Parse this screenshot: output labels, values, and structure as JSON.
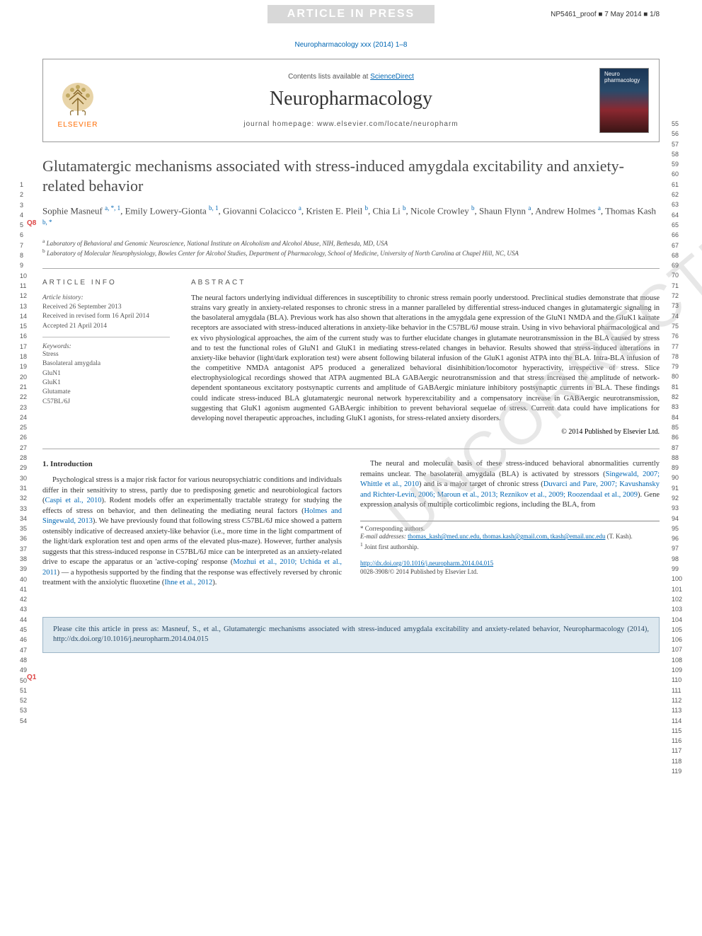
{
  "banner": {
    "label": "ARTICLE IN PRESS",
    "proof": "NP5461_proof ■ 7 May 2014 ■ 1/8"
  },
  "journal_ref": "Neuropharmacology xxx (2014) 1–8",
  "header": {
    "contents": "Contents lists available at ",
    "sd": "ScienceDirect",
    "journal": "Neuropharmacology",
    "homepage_label": "journal homepage: ",
    "homepage_url": "www.elsevier.com/locate/neuropharm",
    "publisher": "ELSEVIER"
  },
  "title": "Glutamatergic mechanisms associated with stress-induced amygdala excitability and anxiety-related behavior",
  "authors_html": "Sophie Masneuf <sup>a, *, 1</sup>, Emily Lowery-Gionta <sup>b, 1</sup>, Giovanni Colacicco <sup>a</sup>, Kristen E. Pleil <sup>b</sup>, Chia Li <sup>b</sup>, Nicole Crowley <sup>b</sup>, Shaun Flynn <sup>a</sup>, Andrew Holmes <sup>a</sup>, Thomas Kash <sup>b, *</sup>",
  "affil_a": "Laboratory of Behavioral and Genomic Neuroscience, National Institute on Alcoholism and Alcohol Abuse, NIH, Bethesda, MD, USA",
  "affil_b": "Laboratory of Molecular Neurophysiology, Bowles Center for Alcohol Studies, Department of Pharmacology, School of Medicine, University of North Carolina at Chapel Hill, NC, USA",
  "article_info_label": "ARTICLE INFO",
  "abstract_label": "ABSTRACT",
  "history": {
    "head": "Article history:",
    "received": "Received 26 September 2013",
    "revised": "Received in revised form 16 April 2014",
    "accepted": "Accepted 21 April 2014"
  },
  "keywords": {
    "head": "Keywords:",
    "items": [
      "Stress",
      "Basolateral amygdala",
      "GluN1",
      "GluK1",
      "Glutamate",
      "C57BL/6J"
    ]
  },
  "abstract": "The neural factors underlying individual differences in susceptibility to chronic stress remain poorly understood. Preclinical studies demonstrate that mouse strains vary greatly in anxiety-related responses to chronic stress in a manner paralleled by differential stress-induced changes in glutamatergic signaling in the basolateral amygdala (BLA). Previous work has also shown that alterations in the amygdala gene expression of the GluN1 NMDA and the GluK1 kainate receptors are associated with stress-induced alterations in anxiety-like behavior in the C57BL/6J mouse strain. Using in vivo behavioral pharmacological and ex vivo physiological approaches, the aim of the current study was to further elucidate changes in glutamate neurotransmission in the BLA caused by stress and to test the functional roles of GluN1 and GluK1 in mediating stress-related changes in behavior. Results showed that stress-induced alterations in anxiety-like behavior (light/dark exploration test) were absent following bilateral infusion of the GluK1 agonist ATPA into the BLA. Intra-BLA infusion of the competitive NMDA antagonist AP5 produced a generalized behavioral disinhibition/locomotor hyperactivity, irrespective of stress. Slice electrophysiological recordings showed that ATPA augmented BLA GABAergic neurotransmission and that stress increased the amplitude of network-dependent spontaneous excitatory postsynaptic currents and amplitude of GABAergic miniature inhibitory postsynaptic currents in BLA. These findings could indicate stress-induced BLA glutamatergic neuronal network hyperexcitability and a compensatory increase in GABAergic neurotransmission, suggesting that GluK1 agonism augmented GABAergic inhibition to prevent behavioral sequelae of stress. Current data could have implications for developing novel therapeutic approaches, including GluK1 agonists, for stress-related anxiety disorders.",
  "copyright": "© 2014 Published by Elsevier Ltd.",
  "intro_head": "1. Introduction",
  "intro_p1_a": "Psychological stress is a major risk factor for various neuropsychiatric conditions and individuals differ in their sensitivity to stress, partly due to predisposing genetic and neurobiological factors (",
  "cite1": "Caspi et al., 2010",
  "intro_p1_b": "). Rodent models offer an experimentally tractable strategy for studying the effects of stress on behavior, and then delineating the mediating neural factors (",
  "cite2": "Holmes and Singewald, 2013",
  "intro_p1_c": "). We have previously found that following stress C57BL/6J mice showed a pattern ostensibly indicative of decreased anxiety-like behavior (i.e., more time in the light compartment of the light/dark exploration test and open arms of the elevated plus-maze). However, further analysis suggests that this stress-induced response in C57BL/6J mice can be interpreted as an anxiety-related drive to escape the apparatus or an 'active-coping' response (",
  "cite3": "Mozhui et al., 2010; Uchida et al., 2011",
  "intro_p1_d": ") — a hypothesis supported by the finding that the response was effectively reversed by chronic treatment with the anxiolytic fluoxetine (",
  "cite4": "Ihne et al., 2012",
  "intro_p1_e": ").",
  "intro_p2_a": "The neural and molecular basis of these stress-induced behavioral abnormalities currently remains unclear. The basolateral amygdala (BLA) is activated by stressors (",
  "cite5": "Singewald, 2007; Whittle et al., 2010",
  "intro_p2_b": ") and is a major target of chronic stress (",
  "cite6": "Duvarci and Pare, 2007; Kavushansky and Richter-Levin, 2006; Maroun et al., 2013; Reznikov et al., 2009; Roozendaal et al., 2009",
  "intro_p2_c": "). Gene expression analysis of multiple corticolimbic regions, including the BLA, from",
  "corr_label": "* Corresponding authors.",
  "email_label": "E-mail addresses: ",
  "emails": "thomas_kash@med.unc.edu, thomas.kash@gmail.com, tkash@email.unc.edu",
  "email_who": " (T. Kash).",
  "joint": "Joint first authorship.",
  "doi": "http://dx.doi.org/10.1016/j.neuropharm.2014.04.015",
  "issn_pub": "0028-3908/© 2014 Published by Elsevier Ltd.",
  "cite_box": "Please cite this article in press as: Masneuf, S., et al., Glutamatergic mechanisms associated with stress-induced amygdala excitability and anxiety-related behavior, Neuropharmacology (2014), http://dx.doi.org/10.1016/j.neuropharm.2014.04.015",
  "q1": "Q1",
  "q8": "Q8",
  "watermark": "UNCORRECTED PROOF",
  "linenum_l_start": 1,
  "linenum_l_end": 54,
  "linenum_r_start": 55,
  "linenum_r_end": 119,
  "colors": {
    "link": "#0066b3",
    "banner_bg": "#d8d8d8",
    "citebox_bg": "#dde8ef",
    "citebox_border": "#9cb5c8",
    "elsevier_orange": "#ff6b00",
    "q_red": "#d44"
  }
}
